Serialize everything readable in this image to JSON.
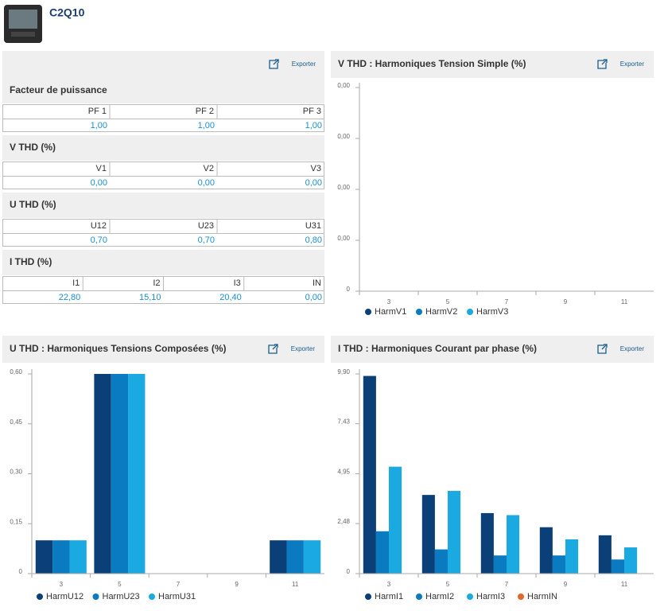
{
  "header": {
    "title": "C2Q10"
  },
  "summary": {
    "export": "Exporter",
    "sections": [
      {
        "title": "Facteur de puissance",
        "headers": [
          "PF 1",
          "PF 2",
          "PF 3"
        ],
        "values": [
          "1,00",
          "1,00",
          "1,00"
        ]
      },
      {
        "title": "V THD (%)",
        "headers": [
          "V1",
          "V2",
          "V3"
        ],
        "values": [
          "0,00",
          "0,00",
          "0,00"
        ]
      },
      {
        "title": "U THD (%)",
        "headers": [
          "U12",
          "U23",
          "U31"
        ],
        "values": [
          "0,70",
          "0,70",
          "0,80"
        ]
      },
      {
        "title": "I THD (%)",
        "headers": [
          "I1",
          "I2",
          "I3",
          "IN"
        ],
        "values": [
          "22,80",
          "15,10",
          "20,40",
          "0,00"
        ]
      }
    ]
  },
  "chart_data": [
    {
      "type": "bar",
      "title": "V THD : Harmoniques Tension Simple (%)",
      "export": "Exporter",
      "categories": [
        "3",
        "5",
        "7",
        "9",
        "11"
      ],
      "series": [
        {
          "name": "HarmV1",
          "color": "#0b3f78",
          "values": [
            0,
            0,
            0,
            0,
            0
          ]
        },
        {
          "name": "HarmV2",
          "color": "#0a7bc1",
          "values": [
            0,
            0,
            0,
            0,
            0
          ]
        },
        {
          "name": "HarmV3",
          "color": "#1aa9e0",
          "values": [
            0,
            0,
            0,
            0,
            0
          ]
        }
      ],
      "ylim": [
        0,
        0.004
      ],
      "yticks": [
        0,
        {
          "value": 0.001,
          "label": "0,00"
        },
        {
          "value": 0.002,
          "label": "0,00"
        },
        {
          "value": 0.003,
          "label": "0,00"
        },
        {
          "value": 0.004,
          "label": "0,00"
        }
      ],
      "grid": false,
      "legend": "bottom"
    },
    {
      "type": "bar",
      "title": "U THD : Harmoniques Tensions Composées (%)",
      "export": "Exporter",
      "categories": [
        "3",
        "5",
        "7",
        "9",
        "11"
      ],
      "series": [
        {
          "name": "HarmU12",
          "color": "#0b3f78",
          "values": [
            0.1,
            0.6,
            0,
            0,
            0.1
          ]
        },
        {
          "name": "HarmU23",
          "color": "#0a7bc1",
          "values": [
            0.1,
            0.6,
            0,
            0,
            0.1
          ]
        },
        {
          "name": "HarmU31",
          "color": "#1aa9e0",
          "values": [
            0.1,
            0.6,
            0,
            0,
            0.1
          ]
        }
      ],
      "ylim": [
        0,
        0.6
      ],
      "yticks": [
        0,
        {
          "value": 0.15,
          "label": "0,15"
        },
        {
          "value": 0.3,
          "label": "0,30"
        },
        {
          "value": 0.45,
          "label": "0,45"
        },
        {
          "value": 0.6,
          "label": "0,60"
        }
      ],
      "grid": false,
      "legend": "bottom"
    },
    {
      "type": "bar",
      "title": "I THD : Harmoniques Courant par phase (%)",
      "export": "Exporter",
      "categories": [
        "3",
        "5",
        "7",
        "9",
        "11"
      ],
      "series": [
        {
          "name": "HarmI1",
          "color": "#0b3f78",
          "values": [
            9.8,
            3.9,
            3.0,
            2.3,
            1.9
          ]
        },
        {
          "name": "HarmI2",
          "color": "#0a7bc1",
          "values": [
            2.1,
            1.2,
            0.9,
            0.9,
            0.7
          ]
        },
        {
          "name": "HarmI3",
          "color": "#1aa9e0",
          "values": [
            5.3,
            4.1,
            2.9,
            1.7,
            1.3
          ]
        },
        {
          "name": "HarmIN",
          "color": "#e0692a",
          "values": [
            0,
            0,
            0,
            0,
            0
          ]
        }
      ],
      "ylim": [
        0,
        9.9
      ],
      "yticks": [
        0,
        {
          "value": 2.48,
          "label": "2,48"
        },
        {
          "value": 4.95,
          "label": "4,95"
        },
        {
          "value": 7.43,
          "label": "7,43"
        },
        {
          "value": 9.9,
          "label": "9,90"
        }
      ],
      "grid": false,
      "legend": "bottom"
    }
  ]
}
